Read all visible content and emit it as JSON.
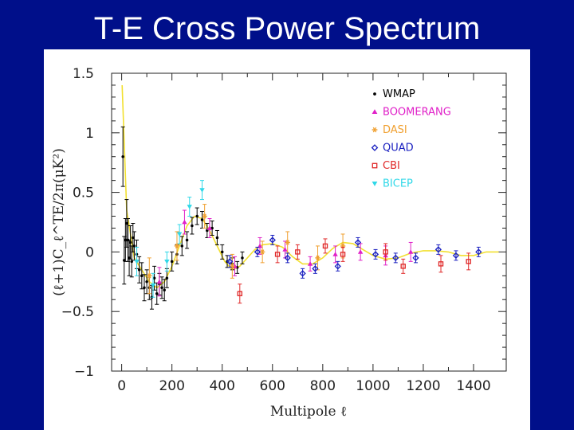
{
  "slide": {
    "title": "T-E Cross Power Spectrum"
  },
  "colors": {
    "background": "#000f8a",
    "WMAP": "#000000",
    "BOOMERANG": "#e020c8",
    "DASI": "#f0a030",
    "QUAD": "#1a20c0",
    "CBI": "#e02828",
    "BICEP": "#30d8e8",
    "model": "#f2e030"
  },
  "chart_data": {
    "type": "scatter",
    "title": "T-E Cross Power Spectrum",
    "xlabel": "Multipole ℓ",
    "ylabel": "(ℓ+1)C_ℓ^TE/2π(μK²)",
    "xlim": [
      -40,
      1530
    ],
    "ylim": [
      -1,
      1.5
    ],
    "xticks": [
      "0",
      "200",
      "400",
      "600",
      "800",
      "1000",
      "1200",
      "1400"
    ],
    "xtick_values": [
      0,
      200,
      400,
      600,
      800,
      1000,
      1200,
      1400
    ],
    "yticks": [
      "1.5",
      "1",
      "0.5",
      "0",
      "−0.5",
      "−1"
    ],
    "ytick_values": [
      1.5,
      1,
      0.5,
      0,
      -0.5,
      -1
    ],
    "grid": false,
    "legend_position": "top-right",
    "model": {
      "x": [
        2,
        20,
        50,
        80,
        110,
        140,
        170,
        200,
        230,
        260,
        290,
        320,
        350,
        380,
        410,
        440,
        470,
        500,
        530,
        560,
        600,
        640,
        680,
        720,
        760,
        800,
        840,
        880,
        920,
        960,
        1000,
        1050,
        1100,
        1150,
        1200,
        1250,
        1300,
        1350,
        1400,
        1450,
        1500
      ],
      "y": [
        1.4,
        0.35,
        -0.05,
        -0.15,
        -0.25,
        -0.3,
        -0.25,
        -0.12,
        0.05,
        0.22,
        0.3,
        0.28,
        0.18,
        0.05,
        -0.08,
        -0.15,
        -0.12,
        -0.05,
        0.02,
        0.06,
        0.07,
        0.04,
        -0.04,
        -0.1,
        -0.1,
        -0.05,
        0.03,
        0.08,
        0.07,
        0.02,
        -0.03,
        -0.06,
        -0.05,
        -0.01,
        0.01,
        0.01,
        0.0,
        -0.03,
        -0.03,
        0.0,
        0.0
      ]
    },
    "series": [
      {
        "name": "WMAP",
        "marker": "dot",
        "x": [
          5,
          10,
          15,
          20,
          25,
          30,
          35,
          40,
          45,
          50,
          60,
          70,
          80,
          90,
          100,
          110,
          120,
          130,
          140,
          150,
          160,
          170,
          180,
          200,
          220,
          240,
          260,
          280,
          300,
          320,
          340,
          360,
          380,
          400,
          420,
          440,
          460,
          480
        ],
        "y": [
          0.8,
          -0.07,
          0.1,
          0.24,
          0.1,
          -0.05,
          0.08,
          -0.08,
          0.12,
          0.05,
          -0.02,
          -0.15,
          -0.2,
          -0.3,
          -0.25,
          -0.3,
          -0.38,
          -0.22,
          -0.35,
          -0.27,
          -0.3,
          -0.32,
          -0.22,
          -0.08,
          -0.02,
          0.05,
          0.1,
          0.22,
          0.3,
          0.27,
          0.18,
          0.2,
          0.12,
          0.0,
          -0.08,
          -0.1,
          -0.13,
          -0.05
        ],
        "err": [
          0.25,
          0.2,
          0.18,
          0.2,
          0.18,
          0.15,
          0.14,
          0.13,
          0.12,
          0.12,
          0.12,
          0.11,
          0.11,
          0.11,
          0.1,
          0.1,
          0.1,
          0.1,
          0.09,
          0.09,
          0.09,
          0.09,
          0.08,
          0.08,
          0.08,
          0.08,
          0.07,
          0.07,
          0.07,
          0.07,
          0.06,
          0.06,
          0.06,
          0.06,
          0.05,
          0.05,
          0.05,
          0.05
        ]
      },
      {
        "name": "BOOMERANG",
        "marker": "triangle",
        "x": [
          150,
          250,
          350,
          450,
          550,
          650,
          750,
          850,
          950,
          1050,
          1150
        ],
        "y": [
          -0.25,
          0.25,
          0.2,
          -0.12,
          0.05,
          0.02,
          -0.1,
          -0.02,
          0.0,
          -0.03,
          0.0
        ],
        "err": [
          0.12,
          0.1,
          0.08,
          0.08,
          0.07,
          0.07,
          0.06,
          0.07,
          0.07,
          0.08,
          0.08
        ]
      },
      {
        "name": "DASI",
        "marker": "star",
        "x": [
          110,
          220,
          330,
          440,
          560,
          660,
          780,
          880
        ],
        "y": [
          -0.2,
          0.05,
          0.3,
          -0.12,
          0.0,
          0.08,
          -0.05,
          0.05
        ],
        "err": [
          0.15,
          0.12,
          0.1,
          0.1,
          0.09,
          0.09,
          0.1,
          0.1
        ]
      },
      {
        "name": "QUAD",
        "marker": "diamond",
        "x": [
          430,
          540,
          600,
          660,
          720,
          770,
          860,
          940,
          1010,
          1090,
          1170,
          1260,
          1330,
          1420
        ],
        "y": [
          -0.08,
          0.0,
          0.1,
          -0.05,
          -0.18,
          -0.14,
          -0.12,
          0.08,
          -0.02,
          -0.05,
          -0.05,
          0.02,
          -0.03,
          0.0
        ],
        "err": [
          0.05,
          0.04,
          0.04,
          0.04,
          0.04,
          0.04,
          0.04,
          0.04,
          0.04,
          0.04,
          0.04,
          0.04,
          0.04,
          0.04
        ]
      },
      {
        "name": "CBI",
        "marker": "square",
        "x": [
          470,
          620,
          700,
          810,
          880,
          1050,
          1120,
          1270,
          1380
        ],
        "y": [
          -0.35,
          -0.02,
          0.0,
          0.05,
          -0.02,
          0.0,
          -0.12,
          -0.1,
          -0.08
        ],
        "err": [
          0.08,
          0.07,
          0.06,
          0.06,
          0.06,
          0.07,
          0.06,
          0.07,
          0.07
        ]
      },
      {
        "name": "BICEP",
        "marker": "triangle-down",
        "x": [
          60,
          125,
          180,
          230,
          270,
          320
        ],
        "y": [
          -0.08,
          -0.28,
          -0.08,
          0.15,
          0.38,
          0.52
        ],
        "err": [
          0.12,
          0.1,
          0.08,
          0.08,
          0.08,
          0.08
        ]
      }
    ]
  }
}
